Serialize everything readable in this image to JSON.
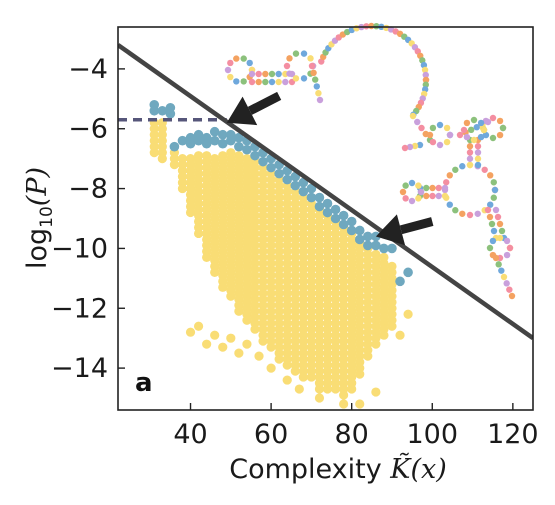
{
  "chart_data": {
    "type": "scatter",
    "title": "",
    "panel_label": "a",
    "xlabel": {
      "prefix": "Complexity ",
      "symbol": "K̃",
      "arg": "(x)"
    },
    "ylabel": {
      "prefix": "log",
      "sub": "10",
      "arg": "(P)"
    },
    "xlim": [
      22,
      125
    ],
    "ylim": [
      -15.4,
      -2.6
    ],
    "xticks": [
      40,
      60,
      80,
      100,
      120
    ],
    "yticks": [
      -4,
      -6,
      -8,
      -10,
      -12,
      -14
    ],
    "xtick_labels": [
      "40",
      "60",
      "80",
      "100",
      "120"
    ],
    "ytick_labels": [
      "−4",
      "−6",
      "−8",
      "−10",
      "−12",
      "−14"
    ],
    "grid": false,
    "colors": {
      "bulk": "#f9dd75",
      "max": "#6fa8bf",
      "bound_line": "#444444",
      "dashed_line": "#56567a",
      "arrow": "#222222",
      "rna_palette": [
        "#f48ea1",
        "#f4a261",
        "#8cc17c",
        "#6fa8dc",
        "#f9dd75",
        "#c9a0dc"
      ]
    },
    "series": [
      {
        "role": "bulk",
        "columns": [
          {
            "x": 31,
            "ymin": -6.9,
            "ymax": -5.8
          },
          {
            "x": 33,
            "ymin": -7.0,
            "ymax": -5.8
          },
          {
            "x": 36,
            "ymin": -7.3,
            "ymax": -6.8
          },
          {
            "x": 38,
            "ymin": -8.1,
            "ymax": -7.0
          },
          {
            "x": 40,
            "ymin": -8.9,
            "ymax": -7.0
          },
          {
            "x": 42,
            "ymin": -9.6,
            "ymax": -6.9
          },
          {
            "x": 44,
            "ymin": -10.3,
            "ymax": -6.9
          },
          {
            "x": 46,
            "ymin": -10.9,
            "ymax": -7.0
          },
          {
            "x": 48,
            "ymin": -11.3,
            "ymax": -6.9
          },
          {
            "x": 50,
            "ymin": -11.7,
            "ymax": -6.8
          },
          {
            "x": 52,
            "ymin": -12.1,
            "ymax": -6.9
          },
          {
            "x": 54,
            "ymin": -12.5,
            "ymax": -7.0
          },
          {
            "x": 56,
            "ymin": -12.8,
            "ymax": -7.1
          },
          {
            "x": 58,
            "ymin": -13.1,
            "ymax": -7.3
          },
          {
            "x": 60,
            "ymin": -13.4,
            "ymax": -7.5
          },
          {
            "x": 62,
            "ymin": -13.7,
            "ymax": -7.7
          },
          {
            "x": 64,
            "ymin": -13.9,
            "ymax": -7.9
          },
          {
            "x": 66,
            "ymin": -14.1,
            "ymax": -8.1
          },
          {
            "x": 68,
            "ymin": -14.3,
            "ymax": -8.3
          },
          {
            "x": 70,
            "ymin": -14.4,
            "ymax": -8.5
          },
          {
            "x": 72,
            "ymin": -14.7,
            "ymax": -8.7
          },
          {
            "x": 74,
            "ymin": -14.7,
            "ymax": -8.9
          },
          {
            "x": 76,
            "ymin": -14.8,
            "ymax": -9.1
          },
          {
            "x": 78,
            "ymin": -14.9,
            "ymax": -9.3
          },
          {
            "x": 80,
            "ymin": -14.8,
            "ymax": -9.5
          },
          {
            "x": 82,
            "ymin": -14.3,
            "ymax": -9.8
          },
          {
            "x": 84,
            "ymin": -13.6,
            "ymax": -10.0
          },
          {
            "x": 86,
            "ymin": -13.2,
            "ymax": -10.2
          },
          {
            "x": 88,
            "ymin": -12.9,
            "ymax": -10.3
          },
          {
            "x": 90,
            "ymin": -12.6,
            "ymax": -10.6
          }
        ],
        "extra_points": [
          {
            "x": 40,
            "y": -12.8
          },
          {
            "x": 42,
            "y": -12.6
          },
          {
            "x": 44,
            "y": -13.2
          },
          {
            "x": 46,
            "y": -12.9
          },
          {
            "x": 48,
            "y": -13.3
          },
          {
            "x": 50,
            "y": -13.0
          },
          {
            "x": 52,
            "y": -13.5
          },
          {
            "x": 54,
            "y": -13.2
          },
          {
            "x": 57,
            "y": -13.6
          },
          {
            "x": 60,
            "y": -14.0
          },
          {
            "x": 64,
            "y": -14.4
          },
          {
            "x": 67,
            "y": -14.7
          },
          {
            "x": 72,
            "y": -15.0
          },
          {
            "x": 78,
            "y": -15.2
          },
          {
            "x": 82,
            "y": -15.2
          },
          {
            "x": 86,
            "y": -14.8
          },
          {
            "x": 92,
            "y": -12.9
          },
          {
            "x": 94,
            "y": -12.2
          }
        ]
      },
      {
        "role": "max",
        "points": [
          {
            "x": 31,
            "y": -5.2
          },
          {
            "x": 31,
            "y": -5.4
          },
          {
            "x": 33,
            "y": -5.4
          },
          {
            "x": 35,
            "y": -5.3
          },
          {
            "x": 35,
            "y": -5.5
          },
          {
            "x": 36,
            "y": -6.6
          },
          {
            "x": 38,
            "y": -6.4
          },
          {
            "x": 40,
            "y": -6.3
          },
          {
            "x": 40,
            "y": -6.5
          },
          {
            "x": 42,
            "y": -6.2
          },
          {
            "x": 42,
            "y": -6.4
          },
          {
            "x": 44,
            "y": -6.3
          },
          {
            "x": 44,
            "y": -6.5
          },
          {
            "x": 46,
            "y": -6.1
          },
          {
            "x": 46,
            "y": -6.4
          },
          {
            "x": 48,
            "y": -6.2
          },
          {
            "x": 48,
            "y": -6.5
          },
          {
            "x": 50,
            "y": -6.2
          },
          {
            "x": 50,
            "y": -6.4
          },
          {
            "x": 52,
            "y": -6.3
          },
          {
            "x": 52,
            "y": -6.6
          },
          {
            "x": 54,
            "y": -6.4
          },
          {
            "x": 54,
            "y": -6.7
          },
          {
            "x": 56,
            "y": -6.6
          },
          {
            "x": 56,
            "y": -6.9
          },
          {
            "x": 58,
            "y": -6.8
          },
          {
            "x": 58,
            "y": -7.1
          },
          {
            "x": 60,
            "y": -7.0
          },
          {
            "x": 60,
            "y": -7.3
          },
          {
            "x": 62,
            "y": -7.2
          },
          {
            "x": 62,
            "y": -7.5
          },
          {
            "x": 64,
            "y": -7.4
          },
          {
            "x": 64,
            "y": -7.7
          },
          {
            "x": 66,
            "y": -7.6
          },
          {
            "x": 66,
            "y": -7.9
          },
          {
            "x": 68,
            "y": -7.8
          },
          {
            "x": 68,
            "y": -8.1
          },
          {
            "x": 70,
            "y": -8.0
          },
          {
            "x": 70,
            "y": -8.3
          },
          {
            "x": 72,
            "y": -8.3
          },
          {
            "x": 72,
            "y": -8.6
          },
          {
            "x": 74,
            "y": -8.5
          },
          {
            "x": 74,
            "y": -8.8
          },
          {
            "x": 76,
            "y": -8.7
          },
          {
            "x": 76,
            "y": -9.0
          },
          {
            "x": 78,
            "y": -8.9
          },
          {
            "x": 78,
            "y": -9.2
          },
          {
            "x": 80,
            "y": -9.1
          },
          {
            "x": 80,
            "y": -9.4
          },
          {
            "x": 82,
            "y": -9.4
          },
          {
            "x": 82,
            "y": -9.7
          },
          {
            "x": 84,
            "y": -9.6
          },
          {
            "x": 84,
            "y": -9.9
          },
          {
            "x": 86,
            "y": -9.6
          },
          {
            "x": 86,
            "y": -9.9
          },
          {
            "x": 88,
            "y": -10.0
          },
          {
            "x": 90,
            "y": -10.0
          },
          {
            "x": 92,
            "y": -11.1
          },
          {
            "x": 94,
            "y": -10.8
          }
        ]
      }
    ],
    "bound_line": {
      "x1": 22,
      "y1": -3.2,
      "x2": 125,
      "y2": -13.0
    },
    "dashed_line": {
      "x1": 22,
      "x2": 49,
      "y": -5.7
    },
    "arrows": [
      {
        "from": {
          "x": 62,
          "y": -4.9
        },
        "to": {
          "x": 49,
          "y": -5.8
        }
      },
      {
        "from": {
          "x": 100,
          "y": -9.1
        },
        "to": {
          "x": 86,
          "y": -9.6
        }
      }
    ],
    "insets": [
      {
        "name": "rna-structure-top",
        "description_visible": "small RNA secondary structure drawing, hairpin loop with long open loop",
        "anchor": {
          "x": 52,
          "y": -3.4
        }
      },
      {
        "name": "rna-structure-right",
        "description_visible": "small RNA secondary structure drawing with multiloop",
        "anchor": {
          "x": 98,
          "y": -7.4
        }
      }
    ]
  }
}
